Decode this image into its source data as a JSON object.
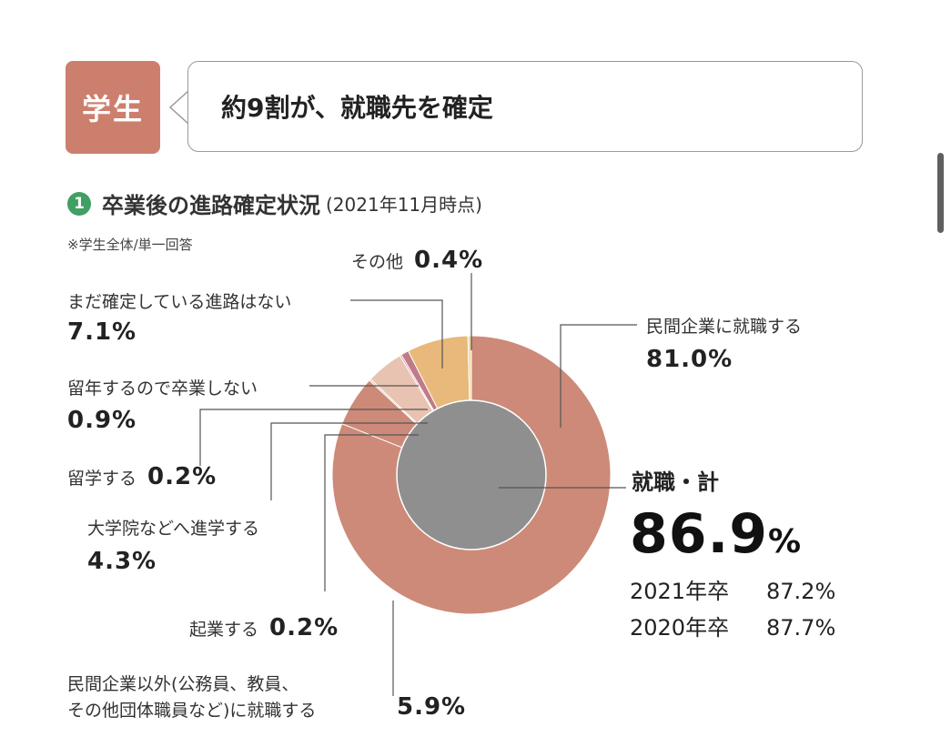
{
  "header": {
    "badge": "学生",
    "headline": "約9割が、就職先を確定"
  },
  "section": {
    "number": "1",
    "title": "卒業後の進路確定状況",
    "subtitle": "(2021年11月時点)",
    "note": "※学生全体/単一回答"
  },
  "labels": {
    "company": {
      "label": "民間企業に就職する",
      "value": "81.0%"
    },
    "other": {
      "label": "その他",
      "value": "0.4%"
    },
    "undecided": {
      "label": "まだ確定している進路はない",
      "value": "7.1%"
    },
    "repeat": {
      "label": "留年するので卒業しない",
      "value": "0.9%"
    },
    "abroad": {
      "label": "留学する",
      "value": "0.2%"
    },
    "grad": {
      "label": "大学院などへ進学する",
      "value": "4.3%"
    },
    "startup": {
      "label": "起業する",
      "value": "0.2%"
    },
    "public_line1": "民間企業以外(公務員、教員、",
    "public_line2": "その他団体職員など)に就職する",
    "public_value": "5.9%"
  },
  "total": {
    "label": "就職・計",
    "value": "86.9",
    "unit": "%",
    "comparisons": [
      {
        "year": "2021年卒",
        "value": "87.2%"
      },
      {
        "year": "2020年卒",
        "value": "87.7%"
      }
    ]
  },
  "chart_data": {
    "type": "pie",
    "title": "卒業後の進路確定状況",
    "outer_ring": [
      {
        "name": "民間企業に就職する",
        "value": 81.0,
        "color": "#cd8a79"
      },
      {
        "name": "民間企業以外(公務員、教員、その他団体職員など)に就職する",
        "value": 5.9,
        "color": "#cd8a79"
      },
      {
        "name": "起業する",
        "value": 0.2,
        "color": "#e8b7a6"
      },
      {
        "name": "大学院などへ進学する",
        "value": 4.3,
        "color": "#e8c3b2"
      },
      {
        "name": "留学する",
        "value": 0.2,
        "color": "#d98a9c"
      },
      {
        "name": "留年するので卒業しない",
        "value": 0.9,
        "color": "#c07a88"
      },
      {
        "name": "まだ確定している進路はない",
        "value": 7.1,
        "color": "#e8b97a"
      },
      {
        "name": "その他",
        "value": 0.4,
        "color": "#f3d9a6"
      }
    ],
    "inner_circle": {
      "name": "就職・計",
      "value": 86.9,
      "color": "#8f8f8f"
    }
  }
}
